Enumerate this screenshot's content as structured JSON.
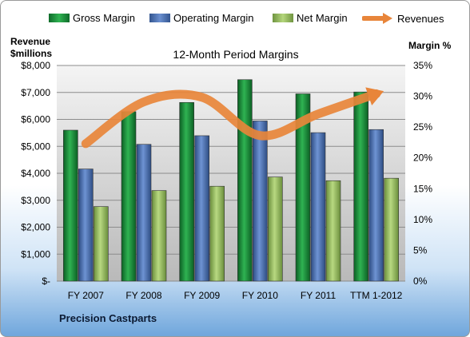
{
  "chart_data": {
    "type": "bar",
    "title": "12-Month Period Margins",
    "company": "Precision Castparts",
    "y_left_title_line1": "Revenue",
    "y_left_title_line2": "$millions",
    "y_right_title": "Margin %",
    "categories": [
      "FY 2007",
      "FY 2008",
      "FY 2009",
      "FY 2010",
      "FY 2011",
      "TTM 1-2012"
    ],
    "left_axis": {
      "min": 0,
      "max": 8000,
      "step": 1000,
      "tick_labels": [
        "$-",
        "$1,000",
        "$2,000",
        "$3,000",
        "$4,000",
        "$5,000",
        "$6,000",
        "$7,000",
        "$8,000"
      ]
    },
    "right_axis": {
      "min": 0,
      "max": 35,
      "step": 5,
      "tick_labels": [
        "0%",
        "5%",
        "10%",
        "15%",
        "20%",
        "25%",
        "30%",
        "35%"
      ]
    },
    "series": [
      {
        "name": "Gross Margin",
        "axis": "right",
        "kind": "bar",
        "color": "#1e8a3c",
        "values": [
          24.5,
          27.5,
          29.0,
          32.7,
          30.4,
          30.7
        ]
      },
      {
        "name": "Operating Margin",
        "axis": "right",
        "kind": "bar",
        "color": "#4a6fb0",
        "values": [
          18.2,
          22.2,
          23.6,
          26.0,
          24.1,
          24.6
        ]
      },
      {
        "name": "Net Margin",
        "axis": "right",
        "kind": "bar",
        "color": "#93b85a",
        "values": [
          12.1,
          14.7,
          15.4,
          16.9,
          16.3,
          16.7
        ]
      },
      {
        "name": "Revenues",
        "axis": "left",
        "kind": "line",
        "color": "#e8853a",
        "values": [
          5100,
          6650,
          6820,
          5400,
          6200,
          6950
        ]
      }
    ],
    "grid": "horizontal",
    "legend_position": "top"
  }
}
